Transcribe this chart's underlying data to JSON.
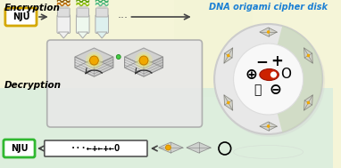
{
  "bg_top_color": "#f5f5d8",
  "bg_bottom_color": "#ddeedd",
  "title": "DNA origami cipher disk",
  "title_color": "#1a7fd4",
  "encryption_label": "Encryption",
  "decryption_label": "Decryption",
  "nju_box_color_enc": "#d4a800",
  "nju_box_color_dec": "#30b830",
  "nju_text": "NJU",
  "arrow_color": "#444444",
  "disk_outer_color": "#e4e4e4",
  "disk_inner_color": "#f4f4f4",
  "disk_accent": "#cc3300",
  "tube1_dna": [
    "#bb6600",
    "#885500"
  ],
  "tube2_dna": [
    "#88bb00",
    "#559900"
  ],
  "tube3_dna": [
    "#55bb88",
    "#33aa66"
  ],
  "tube1_body": "#f0f0f0",
  "tube2_body": "#eef8ee",
  "tube3_body": "#ddf0ee",
  "symbol_minus": "−",
  "symbol_plus": "+",
  "symbol_oplus": "⊕",
  "symbol_circle": "O",
  "symbol_ominus": "⊖",
  "symbol_odot": "ⓘ",
  "decode_sequence": "···←+←+←O"
}
